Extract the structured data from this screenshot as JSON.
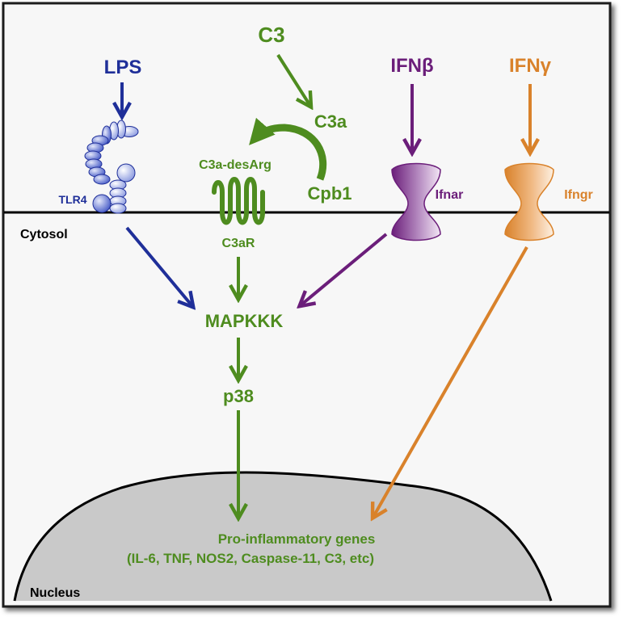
{
  "ligands": {
    "lps": "LPS",
    "c3": "C3",
    "ifnb": "IFNβ",
    "ifng": "IFNγ"
  },
  "intermediates": {
    "c3a": "C3a",
    "c3a_desarg": "C3a-desArg",
    "cpb1": "Cpb1"
  },
  "receptors": {
    "tlr4": "TLR4",
    "c3ar": "C3aR",
    "ifnar": "Ifnar",
    "ifngr": "Ifngr"
  },
  "compartments": {
    "cytosol": "Cytosol",
    "nucleus": "Nucleus"
  },
  "signaling": {
    "mapkkk": "MAPKKK",
    "p38": "p38"
  },
  "genes": {
    "title": "Pro-inflammatory genes",
    "list": "(IL-6, TNF, NOS2, Caspase-11, C3, etc)"
  },
  "colors": {
    "lps": "#1f2f99",
    "c3": "#4e8c1f",
    "ifnb": "#6b1e7a",
    "ifng": "#d9822b",
    "nucleus_fill": "#c9c9c9",
    "frame": "#1a1a1a"
  }
}
